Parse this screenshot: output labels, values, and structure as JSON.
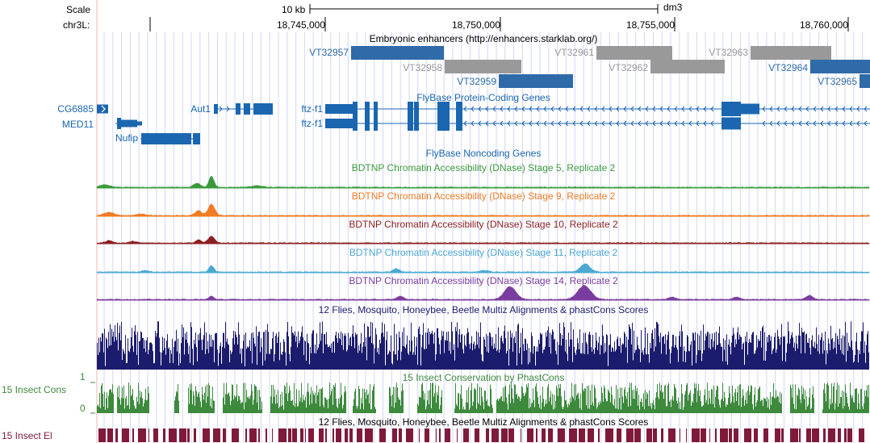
{
  "colors": {
    "enhancer_dark": "#2e6ba8",
    "enhancer_gray": "#999999",
    "gene": "#1a66b0",
    "dnase_stage5": "#3a9a3a",
    "dnase_stage9": "#f07b22",
    "dnase_stage10": "#8c1f1f",
    "dnase_stage11": "#4ba9d1",
    "dnase_stage14": "#7b3ca0",
    "multiz": "#1c1c6e",
    "cons15": "#3d8a3d",
    "elements15": "#801a3a",
    "grid": "#d4d4ff",
    "left_border": "#f5b3b3"
  },
  "ruler": {
    "scale_label": "Scale",
    "chrom_label": "chr3L:",
    "scale_bar_label": "10 kb",
    "assembly": "dm3",
    "positions": [
      "18,745,000",
      "18,750,000",
      "18,755,000",
      "18,760,000"
    ]
  },
  "tracks": {
    "enhancers": {
      "title": "Embryonic enhancers (http://enhancers.starklab.org/)",
      "items": [
        "VT32957",
        "VT32958",
        "VT32959",
        "VT32961",
        "VT32962",
        "VT32963",
        "VT32964",
        "VT32965"
      ]
    },
    "genes": {
      "title": "FlyBase Protein-Coding Genes",
      "names": [
        "CG6885",
        "MED11",
        "Nufip",
        "Aut1",
        "ftz-f1",
        "ftz-f1"
      ]
    },
    "noncoding": {
      "title": "FlyBase Noncoding Genes"
    },
    "dnase": [
      {
        "title": "BDTNP Chromatin Accessibility (DNase) Stage 5, Replicate 2"
      },
      {
        "title": "BDTNP Chromatin Accessibility (DNase) Stage 9, Replicate 2"
      },
      {
        "title": "BDTNP Chromatin Accessibility (DNase) Stage 10, Replicate 2"
      },
      {
        "title": "BDTNP Chromatin Accessibility (DNase) Stage 11, Replicate 2"
      },
      {
        "title": "BDTNP Chromatin Accessibility (DNase) Stage 14, Replicate 2"
      }
    ],
    "multiz": {
      "title": "12 Flies, Mosquito, Honeybee, Beetle Multiz Alignments & phastCons Scores"
    },
    "cons15": {
      "title": "15 Insect Conservation by PhastCons",
      "side_label": "15 Insect Cons",
      "axis_max": "1",
      "axis_min": "0"
    },
    "elements15": {
      "title": "12 Flies, Mosquito, Honeybee, Beetle Multiz Alignments & phastCons Scores",
      "side_label": "15 Insect El"
    }
  }
}
